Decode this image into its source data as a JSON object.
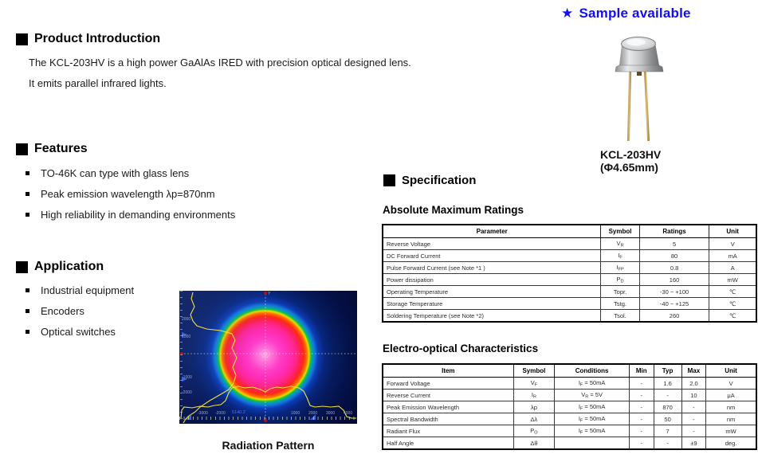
{
  "badge": {
    "star": "★",
    "label": "Sample available"
  },
  "intro": {
    "title": "Product Introduction",
    "lines": [
      "The KCL-203HV is a high power GaAlAs IRED with precision optical designed lens.",
      "It emits parallel infrared lights."
    ]
  },
  "features": {
    "title": "Features",
    "items": [
      "TO-46K can type with glass lens",
      "Peak emission wavelength λp=870nm",
      "High reliability in demanding environments"
    ]
  },
  "application": {
    "title": "Application",
    "items": [
      "Industrial equipment",
      "Encoders",
      "Optical switches"
    ]
  },
  "spec_title": "Specification",
  "product": {
    "name": "KCL-203HV",
    "diameter": "(Φ4.65mm)"
  },
  "radiation": {
    "caption": "Radiation Pattern",
    "y_ticks": [
      "2000",
      "1000",
      "-1000",
      "-2000"
    ],
    "x_ticks": [
      "-3000",
      "-2000",
      "1000",
      "2000",
      "3000",
      "4000"
    ],
    "readout": "5140.2",
    "axis_marker": "Y"
  },
  "amr": {
    "heading": "Absolute Maximum Ratings",
    "headers": [
      "Parameter",
      "Symbol",
      "Ratings",
      "Unit"
    ],
    "rows": [
      [
        "Reverse Voltage",
        [
          [
            "V"
          ],
          [
            "R",
            "sub"
          ]
        ],
        "5",
        "V"
      ],
      [
        "DC Forward Current",
        [
          [
            "I"
          ],
          [
            "F",
            "sub"
          ]
        ],
        "80",
        "mA"
      ],
      [
        "Pulse Forward Current (see Note *1 )",
        [
          [
            "I"
          ],
          [
            "FP",
            "sub"
          ]
        ],
        "0.8",
        "A"
      ],
      [
        "Power dissipation",
        [
          [
            "P"
          ],
          [
            "D",
            "sub"
          ]
        ],
        "160",
        "mW"
      ],
      [
        "Operating Temperature",
        "Topr.",
        "-30 ~ +100",
        "℃"
      ],
      [
        "Storage Temperature",
        "Tstg.",
        "-40 ~ +125",
        "℃"
      ],
      [
        "Soldering Temperature (see Note *2)",
        "Tsol.",
        "260",
        "℃"
      ]
    ]
  },
  "eoc": {
    "heading": "Electro-optical Characteristics",
    "headers": [
      "Item",
      "Symbol",
      "Conditions",
      "Min",
      "Typ",
      "Max",
      "Unit"
    ],
    "rows": [
      [
        "Forward Voltage",
        [
          [
            "V"
          ],
          [
            "F",
            "sub"
          ]
        ],
        [
          [
            "I"
          ],
          [
            "F",
            "sub"
          ],
          [
            " = 50mA"
          ]
        ],
        "-",
        "1.6",
        "2.0",
        "V"
      ],
      [
        "Reverse Current",
        [
          [
            "I"
          ],
          [
            "R",
            "sub"
          ]
        ],
        [
          [
            "V"
          ],
          [
            "R",
            "sub"
          ],
          [
            " = 5V"
          ]
        ],
        "-",
        "-",
        "10",
        "μA"
      ],
      [
        "Peak Emission Wavelength",
        "λp",
        [
          [
            "I"
          ],
          [
            "F",
            "sub"
          ],
          [
            " = 50mA"
          ]
        ],
        "-",
        "870",
        "-",
        "nm"
      ],
      [
        "Spectral Bandwidth",
        "Δλ",
        [
          [
            "I"
          ],
          [
            "F",
            "sub"
          ],
          [
            " = 50mA"
          ]
        ],
        "-",
        "50",
        "-",
        "nm"
      ],
      [
        "Radiant Flux",
        [
          [
            "P"
          ],
          [
            "O",
            "sub"
          ]
        ],
        [
          [
            "I"
          ],
          [
            "F",
            "sub"
          ],
          [
            " = 50mA"
          ]
        ],
        "-",
        "7",
        "-",
        "mW"
      ],
      [
        "Half Angle",
        "Δθ",
        "",
        "-",
        "-",
        "±9",
        "deg."
      ]
    ]
  },
  "colors": {
    "accent_blue": "#1010ee",
    "plot_bg": "#040c38",
    "profile_yellow": "#f2e23c"
  }
}
